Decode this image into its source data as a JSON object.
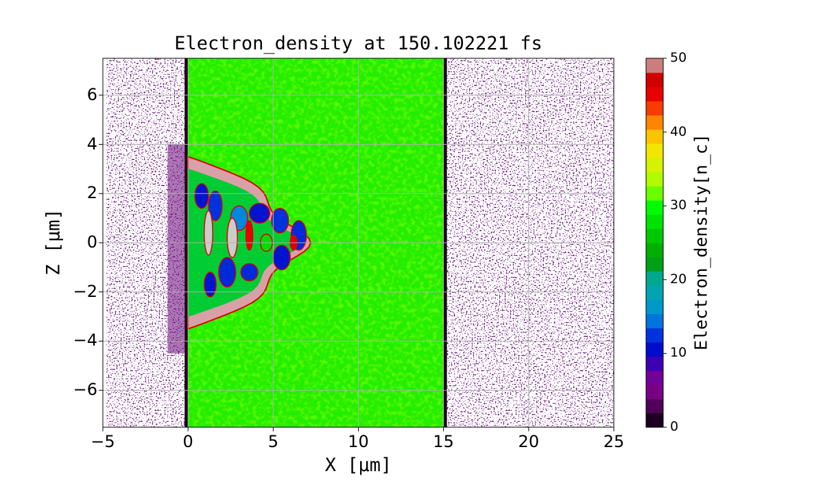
{
  "chart_data": {
    "type": "heatmap",
    "title": "Electron_density at 150.102221 fs",
    "xlabel": "X [μm]",
    "ylabel": "Z [μm]",
    "xlim": [
      -5,
      25
    ],
    "ylim": [
      -7.5,
      7.5
    ],
    "x_ticks": [
      -5,
      0,
      5,
      10,
      15,
      20,
      25
    ],
    "y_ticks": [
      -6,
      -4,
      -2,
      0,
      2,
      4,
      6
    ],
    "grid": true,
    "colorbar": {
      "label": "Electron_density[n_c]",
      "range": [
        0,
        50
      ],
      "ticks": [
        0,
        10,
        20,
        30,
        40,
        50
      ],
      "colormap": "nipy_spectral (discrete levels)"
    },
    "regions": [
      {
        "name": "target slab",
        "x_range": [
          0,
          15
        ],
        "z_range": [
          -7.5,
          7.5
        ],
        "density": 30
      },
      {
        "name": "laser-driven cavity",
        "x_range": [
          0,
          7.2
        ],
        "z_range": [
          -3.5,
          3.5
        ],
        "density_range": [
          0,
          50
        ]
      },
      {
        "name": "rear-side expanded electrons",
        "x_range": [
          15,
          25
        ],
        "density_range": [
          0,
          2
        ]
      },
      {
        "name": "front-side expanded electrons",
        "x_range": [
          -5,
          0
        ],
        "density_range": [
          0,
          5
        ]
      }
    ]
  }
}
